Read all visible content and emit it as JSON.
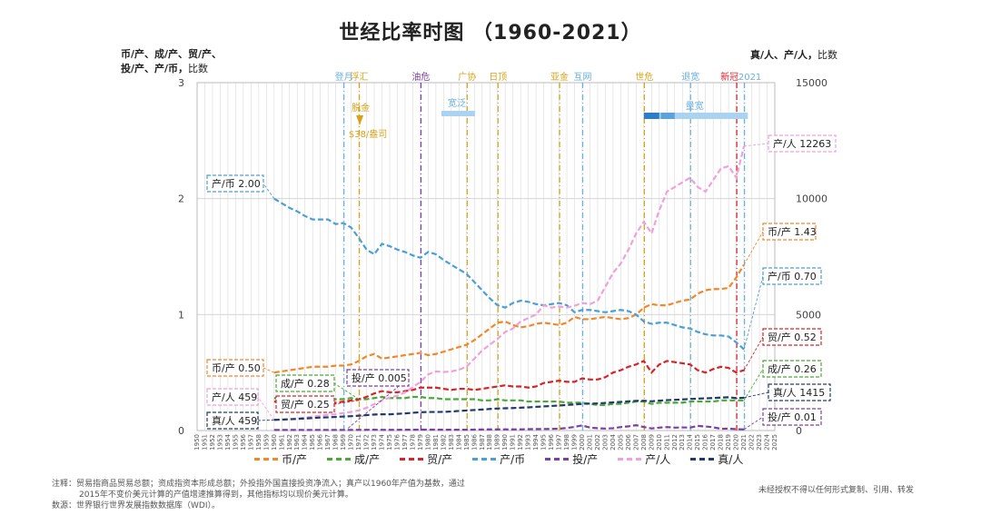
{
  "title": "世经比率时图 （1960-2021）",
  "left_axis_label": {
    "line1": "币/产、成/产、贸/产、",
    "line2": "投/产、产/币",
    "unit": "比数"
  },
  "right_axis_label": {
    "text": "真/人、产/人",
    "unit": "比数"
  },
  "notes": {
    "line1": "注释：贸易指商品贸易总额；资成指资本形成总额；外投指外国直接投资净流入；真产以1960年产值为基数，通过",
    "line2": "2015年不变价美元计算的产值增速推算得到，其他指标均以现价美元计算。",
    "line3": "数源：世界银行世界发展指数数据库（WDI）。"
  },
  "copyright": "未经授权不得以任何形式复制、引用、转发",
  "colors": {
    "bi_chan": "#f0882a",
    "cheng_chan": "#4aa838",
    "mao_chan": "#d6242a",
    "chan_bi": "#4a9fd6",
    "tou_chan": "#7b3fa3",
    "chan_ren": "#f0a0dc",
    "zhen_ren": "#203a6b"
  },
  "chart_data": {
    "type": "line",
    "title": "世经比率时图 （1960-2021）",
    "x_tick_labels": [
      "1950",
      "1951",
      "1952",
      "1953",
      "1954",
      "1955",
      "1956",
      "1957",
      "1958",
      "1959",
      "1960",
      "1961",
      "1962",
      "1963",
      "1964",
      "1965",
      "1966",
      "1967",
      "1968",
      "1969",
      "1970",
      "1971",
      "1972",
      "1973",
      "1974",
      "1975",
      "1976",
      "1977",
      "1978",
      "1979",
      "1980",
      "1981",
      "1982",
      "1983",
      "1984",
      "1985",
      "1986",
      "1987",
      "1988",
      "1989",
      "1990",
      "1991",
      "1992",
      "1993",
      "1994",
      "1995",
      "1996",
      "1997",
      "1998",
      "1999",
      "2000",
      "2001",
      "2002",
      "2003",
      "2004",
      "2005",
      "2006",
      "2007",
      "2008",
      "2009",
      "2010",
      "2011",
      "2012",
      "2013",
      "2014",
      "2015",
      "2016",
      "2017",
      "2018",
      "2019",
      "2020",
      "2021",
      "2022",
      "2023",
      "2024",
      "2025"
    ],
    "xlim": [
      1950,
      2025
    ],
    "y_left": {
      "ticks": [
        "0",
        "1",
        "2",
        "3"
      ],
      "lim": [
        0,
        3
      ]
    },
    "y_right": {
      "ticks": [
        "0",
        "5000",
        "10000",
        "15000"
      ],
      "lim": [
        0,
        15000
      ]
    },
    "x": [
      1960,
      1961,
      1962,
      1963,
      1964,
      1965,
      1966,
      1967,
      1968,
      1969,
      1970,
      1971,
      1972,
      1973,
      1974,
      1975,
      1976,
      1977,
      1978,
      1979,
      1980,
      1981,
      1982,
      1983,
      1984,
      1985,
      1986,
      1987,
      1988,
      1989,
      1990,
      1991,
      1992,
      1993,
      1994,
      1995,
      1996,
      1997,
      1998,
      1999,
      2000,
      2001,
      2002,
      2003,
      2004,
      2005,
      2006,
      2007,
      2008,
      2009,
      2010,
      2011,
      2012,
      2013,
      2014,
      2015,
      2016,
      2017,
      2018,
      2019,
      2020,
      2021
    ],
    "series": [
      {
        "name": "币/产",
        "key": "bi_chan",
        "axis": "left",
        "values": [
          0.5,
          0.51,
          0.52,
          0.53,
          0.54,
          0.55,
          0.55,
          0.55,
          0.56,
          0.56,
          0.57,
          0.6,
          0.64,
          0.66,
          0.62,
          0.63,
          0.64,
          0.65,
          0.66,
          0.67,
          0.65,
          0.66,
          0.68,
          0.7,
          0.72,
          0.74,
          0.78,
          0.83,
          0.88,
          0.93,
          0.94,
          0.91,
          0.89,
          0.9,
          0.92,
          0.93,
          0.92,
          0.91,
          0.93,
          0.98,
          0.96,
          0.96,
          0.97,
          0.98,
          0.97,
          0.96,
          0.97,
          1.0,
          1.06,
          1.09,
          1.08,
          1.08,
          1.1,
          1.12,
          1.13,
          1.18,
          1.21,
          1.22,
          1.22,
          1.23,
          1.32,
          1.43
        ]
      },
      {
        "name": "成/产",
        "key": "cheng_chan",
        "axis": "left",
        "values": [
          0.28,
          0.27,
          0.27,
          0.27,
          0.27,
          0.27,
          0.27,
          0.27,
          0.27,
          0.27,
          0.28,
          0.27,
          0.27,
          0.28,
          0.29,
          0.28,
          0.28,
          0.28,
          0.29,
          0.29,
          0.28,
          0.28,
          0.27,
          0.27,
          0.27,
          0.27,
          0.27,
          0.26,
          0.26,
          0.27,
          0.26,
          0.26,
          0.26,
          0.25,
          0.25,
          0.25,
          0.25,
          0.25,
          0.24,
          0.24,
          0.24,
          0.23,
          0.22,
          0.22,
          0.23,
          0.23,
          0.24,
          0.25,
          0.25,
          0.23,
          0.24,
          0.24,
          0.24,
          0.24,
          0.25,
          0.25,
          0.25,
          0.25,
          0.26,
          0.26,
          0.26,
          0.26
        ]
      },
      {
        "name": "贸/产",
        "key": "mao_chan",
        "axis": "left",
        "values": [
          0.25,
          0.24,
          0.24,
          0.24,
          0.24,
          0.25,
          0.25,
          0.24,
          0.24,
          0.25,
          0.26,
          0.27,
          0.29,
          0.32,
          0.34,
          0.33,
          0.33,
          0.34,
          0.35,
          0.37,
          0.37,
          0.37,
          0.36,
          0.35,
          0.36,
          0.36,
          0.35,
          0.36,
          0.37,
          0.38,
          0.39,
          0.38,
          0.38,
          0.37,
          0.38,
          0.41,
          0.42,
          0.43,
          0.42,
          0.42,
          0.45,
          0.44,
          0.44,
          0.46,
          0.5,
          0.52,
          0.55,
          0.57,
          0.6,
          0.5,
          0.57,
          0.6,
          0.59,
          0.58,
          0.57,
          0.52,
          0.5,
          0.53,
          0.55,
          0.54,
          0.5,
          0.52
        ]
      },
      {
        "name": "产/币",
        "key": "chan_bi",
        "axis": "left",
        "values": [
          2.0,
          1.96,
          1.92,
          1.89,
          1.85,
          1.82,
          1.82,
          1.82,
          1.78,
          1.79,
          1.75,
          1.66,
          1.56,
          1.52,
          1.61,
          1.59,
          1.56,
          1.54,
          1.51,
          1.49,
          1.54,
          1.52,
          1.47,
          1.43,
          1.39,
          1.35,
          1.28,
          1.21,
          1.14,
          1.08,
          1.06,
          1.1,
          1.12,
          1.11,
          1.09,
          1.08,
          1.09,
          1.1,
          1.08,
          1.02,
          1.04,
          1.04,
          1.03,
          1.02,
          1.03,
          1.04,
          1.03,
          1.0,
          0.94,
          0.92,
          0.93,
          0.93,
          0.91,
          0.89,
          0.88,
          0.85,
          0.83,
          0.82,
          0.82,
          0.81,
          0.76,
          0.7
        ]
      },
      {
        "name": "投/产",
        "key": "tou_chan",
        "axis": "left",
        "values": [
          0.005,
          0.005,
          0.005,
          0.005,
          0.005,
          0.005,
          0.005,
          0.005,
          0.005,
          0.005,
          0.005,
          0.006,
          0.006,
          0.007,
          0.006,
          0.006,
          0.006,
          0.007,
          0.007,
          0.008,
          0.008,
          0.008,
          0.007,
          0.007,
          0.007,
          0.007,
          0.008,
          0.009,
          0.01,
          0.01,
          0.01,
          0.01,
          0.01,
          0.012,
          0.013,
          0.013,
          0.014,
          0.016,
          0.022,
          0.031,
          0.044,
          0.025,
          0.02,
          0.017,
          0.02,
          0.03,
          0.036,
          0.046,
          0.03,
          0.018,
          0.025,
          0.03,
          0.025,
          0.027,
          0.025,
          0.04,
          0.035,
          0.028,
          0.015,
          0.017,
          0.012,
          0.01
        ]
      },
      {
        "name": "产/人",
        "key": "chan_ren",
        "axis": "right",
        "values": [
          459,
          470,
          490,
          520,
          560,
          600,
          640,
          680,
          700,
          760,
          800,
          870,
          980,
          1140,
          1300,
          1420,
          1500,
          1650,
          1870,
          2100,
          2420,
          2550,
          2520,
          2550,
          2620,
          2760,
          3100,
          3450,
          3700,
          3950,
          4250,
          4400,
          4700,
          4850,
          5000,
          5400,
          5300,
          5350,
          5300,
          5380,
          5500,
          5450,
          5600,
          6200,
          6800,
          7200,
          7800,
          8500,
          9000,
          8500,
          9500,
          10300,
          10500,
          10700,
          10900,
          10500,
          10300,
          10800,
          11300,
          11400,
          10900,
          12263
        ]
      },
      {
        "name": "真/人",
        "key": "zhen_ren",
        "axis": "right",
        "values": [
          459,
          470,
          485,
          500,
          520,
          540,
          560,
          570,
          585,
          605,
          620,
          640,
          665,
          690,
          700,
          700,
          720,
          740,
          765,
          790,
          800,
          800,
          805,
          820,
          845,
          865,
          885,
          905,
          930,
          950,
          960,
          970,
          985,
          1000,
          1020,
          1040,
          1060,
          1080,
          1100,
          1125,
          1150,
          1160,
          1170,
          1190,
          1215,
          1235,
          1260,
          1280,
          1285,
          1260,
          1290,
          1310,
          1325,
          1340,
          1360,
          1375,
          1390,
          1400,
          1420,
          1435,
          1395,
          1415
        ]
      }
    ],
    "callouts": [
      {
        "text": "产/币 2.00",
        "key": "chan_bi"
      },
      {
        "text": "币/产 0.50",
        "key": "bi_chan"
      },
      {
        "text": "成/产 0.28",
        "key": "cheng_chan"
      },
      {
        "text": "投/产 0.005",
        "key": "tou_chan"
      },
      {
        "text": "产/人 459",
        "key": "chan_ren"
      },
      {
        "text": "贸/产 0.25",
        "key": "mao_chan"
      },
      {
        "text": "真/人 459",
        "key": "zhen_ren"
      },
      {
        "text": "产/人 12263",
        "key": "chan_ren"
      },
      {
        "text": "币/产 1.43",
        "key": "bi_chan"
      },
      {
        "text": "产/币 0.70",
        "key": "chan_bi"
      },
      {
        "text": "贸/产 0.52",
        "key": "mao_chan"
      },
      {
        "text": "成/产 0.26",
        "key": "cheng_chan"
      },
      {
        "text": "真/人 1415",
        "key": "zhen_ren"
      },
      {
        "text": "投/产 0.01",
        "key": "tou_chan"
      }
    ],
    "events": [
      {
        "label": "登月",
        "year": 1969,
        "color": "#6ab0e0"
      },
      {
        "label": "浮汇",
        "year": 1971,
        "color": "#d7a31a"
      },
      {
        "label": "油危",
        "year": 1979,
        "color": "#7b3fa3"
      },
      {
        "label": "广协",
        "year": 1985,
        "color": "#d7a31a"
      },
      {
        "label": "日顶",
        "year": 1989,
        "color": "#d7a31a"
      },
      {
        "label": "亚金",
        "year": 1997,
        "color": "#d7a31a"
      },
      {
        "label": "互网",
        "year": 2000,
        "color": "#6ab0e0"
      },
      {
        "label": "世危",
        "year": 2008,
        "color": "#d7a31a"
      },
      {
        "label": "退宽",
        "year": 2014,
        "color": "#6ab0e0"
      },
      {
        "label": "新冠",
        "year": 2020,
        "color": "#d6242a"
      },
      {
        "label": "2021",
        "year": 2021,
        "color": "#6ab0e0"
      }
    ],
    "annotations": [
      {
        "text": "脱金",
        "color": "#d7a31a"
      },
      {
        "text": "$38/盎司",
        "color": "#d7a31a"
      },
      {
        "text": "宽泛",
        "color": "#6ab0e0"
      },
      {
        "text": "量宽",
        "color": "#6ab0e0"
      }
    ],
    "legend_placement": "bottom",
    "grid": true
  }
}
